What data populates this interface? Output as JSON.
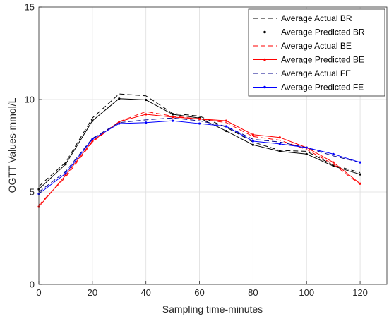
{
  "chart_data": {
    "type": "line",
    "title": "",
    "xlabel": "Sampling time-minutes",
    "ylabel": "OGTT Values-mmol/L",
    "xlim": [
      0,
      130
    ],
    "ylim": [
      0,
      15
    ],
    "xticks": [
      0,
      20,
      40,
      60,
      80,
      100,
      120
    ],
    "yticks": [
      0,
      5,
      10,
      15
    ],
    "grid": true,
    "legend_position": "top-right",
    "x": [
      0,
      10,
      20,
      30,
      40,
      50,
      60,
      70,
      80,
      90,
      100,
      110,
      120
    ],
    "series": [
      {
        "name": "Average Actual BR",
        "color": "#000000",
        "dash": "dashed",
        "marker": "none",
        "values": [
          5.3,
          6.6,
          9.0,
          10.3,
          10.2,
          9.25,
          9.1,
          8.5,
          7.7,
          7.25,
          7.2,
          6.45,
          6.05
        ]
      },
      {
        "name": "Average Predicted BR",
        "color": "#000000",
        "dash": "solid",
        "marker": "dot",
        "values": [
          5.15,
          6.5,
          8.85,
          10.05,
          9.98,
          9.2,
          9.0,
          8.3,
          7.55,
          7.2,
          7.05,
          6.4,
          5.95
        ]
      },
      {
        "name": "Average Actual BE",
        "color": "#ff0000",
        "dash": "dashed",
        "marker": "none",
        "values": [
          4.3,
          5.8,
          7.7,
          8.8,
          9.35,
          9.1,
          8.95,
          8.75,
          8.0,
          7.8,
          7.3,
          6.5,
          5.4
        ]
      },
      {
        "name": "Average Predicted BE",
        "color": "#ff0000",
        "dash": "solid",
        "marker": "dot",
        "values": [
          4.2,
          5.9,
          7.75,
          8.8,
          9.2,
          9.05,
          8.95,
          8.85,
          8.1,
          7.95,
          7.4,
          6.6,
          5.45
        ]
      },
      {
        "name": "Average Actual FE",
        "color": "#00008b",
        "dash": "dashed",
        "marker": "none",
        "values": [
          5.0,
          6.1,
          7.9,
          8.75,
          8.9,
          9.0,
          8.85,
          8.55,
          7.85,
          7.7,
          7.4,
          6.95,
          6.6
        ]
      },
      {
        "name": "Average Predicted FE",
        "color": "#0000ff",
        "dash": "solid",
        "marker": "dot",
        "values": [
          4.9,
          6.0,
          7.85,
          8.7,
          8.75,
          8.85,
          8.7,
          8.55,
          7.75,
          7.6,
          7.4,
          7.05,
          6.6
        ]
      }
    ]
  }
}
